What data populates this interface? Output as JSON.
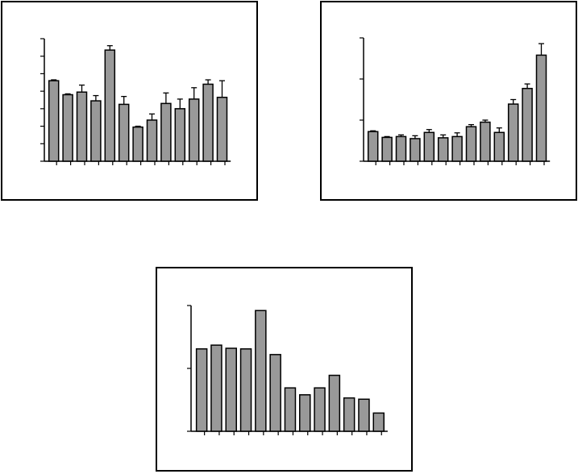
{
  "colors": {
    "bar_fill": "#999999",
    "bar_stroke": "#000000",
    "axis": "#000000",
    "background": "#ffffff"
  },
  "chart_data": [
    {
      "type": "bar",
      "title": "",
      "xlabel": "",
      "ylabel": "",
      "ylim": [
        0,
        7
      ],
      "yticks": [
        0,
        1,
        2,
        3,
        4,
        5,
        6,
        7
      ],
      "grid": false,
      "error_bars": true,
      "series": [
        {
          "values": [
            4.6,
            3.8,
            3.95,
            3.45,
            6.35,
            3.25,
            1.95,
            2.35,
            3.3,
            3.0,
            3.55,
            4.4,
            3.65
          ],
          "errors": [
            0.05,
            0.05,
            0.4,
            0.3,
            0.25,
            0.45,
            0.05,
            0.35,
            0.6,
            0.55,
            0.65,
            0.25,
            0.95
          ]
        }
      ]
    },
    {
      "type": "bar",
      "title": "",
      "xlabel": "",
      "ylabel": "",
      "ylim": [
        0,
        3
      ],
      "yticks": [
        0,
        1,
        2,
        3
      ],
      "grid": false,
      "error_bars": true,
      "series": [
        {
          "values": [
            0.72,
            0.58,
            0.6,
            0.55,
            0.7,
            0.57,
            0.6,
            0.84,
            0.95,
            0.7,
            1.39,
            1.77,
            2.58
          ],
          "errors": [
            0.02,
            0.02,
            0.04,
            0.07,
            0.07,
            0.07,
            0.09,
            0.05,
            0.05,
            0.11,
            0.11,
            0.11,
            0.28
          ]
        }
      ]
    },
    {
      "type": "bar",
      "title": "",
      "xlabel": "",
      "ylabel": "",
      "ylim": [
        0,
        2
      ],
      "yticks": [
        0,
        1,
        2
      ],
      "grid": false,
      "error_bars": false,
      "series": [
        {
          "values": [
            1.31,
            1.37,
            1.32,
            1.31,
            1.92,
            1.22,
            0.69,
            0.58,
            0.69,
            0.89,
            0.53,
            0.51,
            0.29
          ]
        }
      ]
    }
  ]
}
